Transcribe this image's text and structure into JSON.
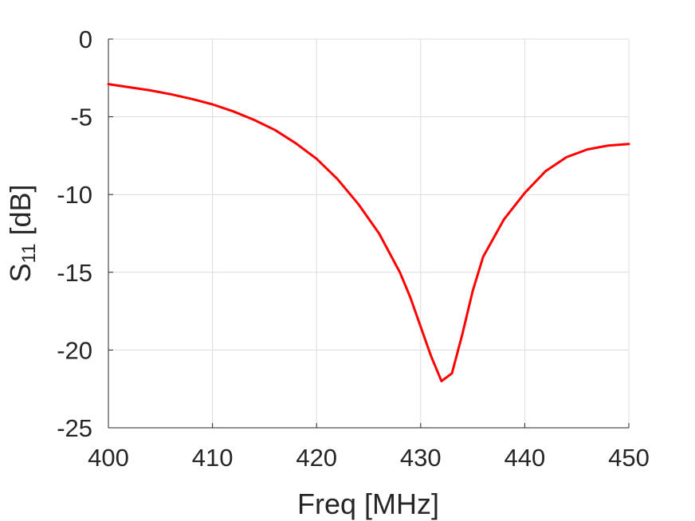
{
  "chart_data": {
    "type": "line",
    "title": "",
    "xlabel": "Freq [MHz]",
    "ylabel_main": "S",
    "ylabel_sub": "11",
    "ylabel_unit": " [dB]",
    "xlim": [
      400,
      450
    ],
    "ylim": [
      -25,
      0
    ],
    "xticks": [
      400,
      410,
      420,
      430,
      440,
      450
    ],
    "yticks": [
      0,
      -5,
      -10,
      -15,
      -20,
      -25
    ],
    "xtick_labels": [
      "400",
      "410",
      "420",
      "430",
      "440",
      "450"
    ],
    "ytick_labels": [
      "0",
      "-5",
      "-10",
      "-15",
      "-20",
      "-25"
    ],
    "grid": true,
    "series": [
      {
        "color": "#ff0000",
        "x": [
          400,
          402,
          404,
          406,
          408,
          410,
          412,
          414,
          416,
          418,
          420,
          422,
          424,
          426,
          428,
          429,
          430,
          431,
          432,
          433,
          434,
          435,
          436,
          438,
          440,
          442,
          444,
          446,
          448,
          450
        ],
        "y": [
          -2.9,
          -3.1,
          -3.3,
          -3.55,
          -3.85,
          -4.2,
          -4.65,
          -5.2,
          -5.85,
          -6.7,
          -7.7,
          -9.0,
          -10.6,
          -12.5,
          -15.0,
          -16.6,
          -18.5,
          -20.4,
          -22.0,
          -21.5,
          -19.0,
          -16.2,
          -14.0,
          -11.6,
          -9.9,
          -8.5,
          -7.6,
          -7.1,
          -6.85,
          -6.75
        ]
      }
    ]
  }
}
